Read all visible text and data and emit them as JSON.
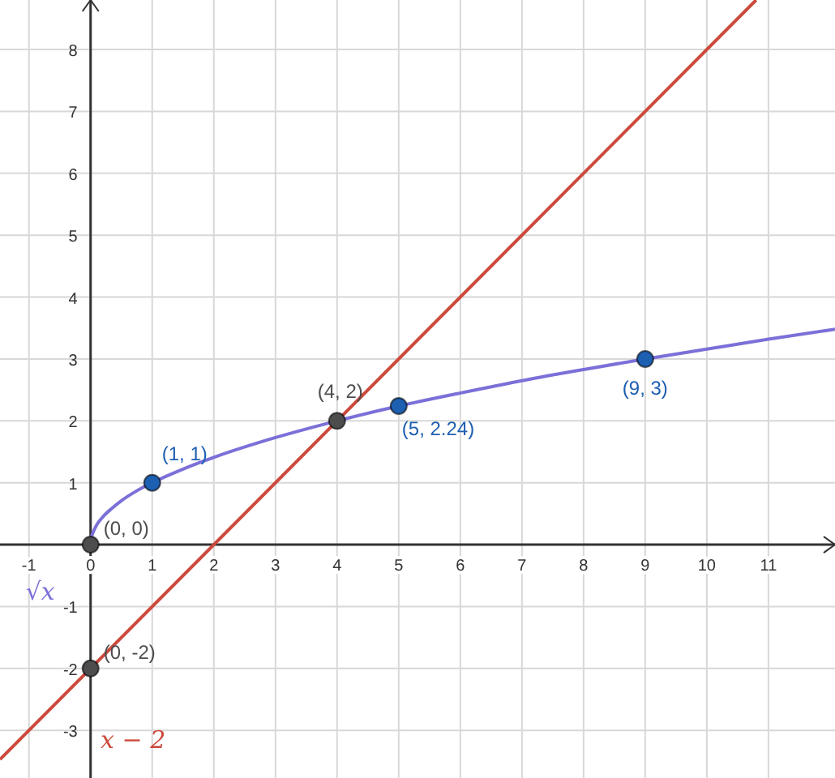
{
  "chart_data": {
    "type": "line",
    "xlim": [
      -1.47,
      12.08
    ],
    "ylim": [
      -3.77,
      8.8
    ],
    "xticks": [
      -1,
      0,
      1,
      2,
      3,
      4,
      5,
      6,
      7,
      8,
      9,
      10,
      11
    ],
    "yticks": [
      -3,
      -2,
      -1,
      1,
      2,
      3,
      4,
      5,
      6,
      7,
      8
    ],
    "grid": true,
    "marker": "none",
    "line_style": "solid",
    "series": [
      {
        "name": "√x",
        "color": "#7b70d8",
        "x": [
          0,
          0.01,
          0.05,
          0.1,
          0.2,
          0.35,
          0.5,
          0.75,
          1,
          1.5,
          2,
          3,
          4,
          5,
          6,
          7,
          8,
          9,
          10,
          11,
          12.08
        ],
        "values": [
          0,
          0.1,
          0.22,
          0.32,
          0.45,
          0.59,
          0.71,
          0.87,
          1,
          1.22,
          1.41,
          1.73,
          2,
          2.24,
          2.45,
          2.65,
          2.83,
          3,
          3.16,
          3.32,
          3.48
        ]
      },
      {
        "name": "x − 2",
        "color": "#cc4a3c",
        "x": [
          -1.47,
          10.8
        ],
        "values": [
          -3.47,
          8.8
        ]
      },
      {
        "type": "scatter",
        "marker": "circle",
        "x": [
          0,
          1,
          4,
          5,
          9,
          0
        ],
        "values": [
          0,
          1,
          2,
          2.24,
          3,
          -2
        ],
        "colors": [
          "#4d4d4d",
          "#1d5fb0",
          "#4d4d4d",
          "#1d5fb0",
          "#1d5fb0",
          "#4d4d4d"
        ]
      }
    ],
    "annotations": [
      {
        "text": "(0, 0)",
        "x": 0,
        "y": 0
      },
      {
        "text": "(1, 1)",
        "x": 1,
        "y": 1
      },
      {
        "text": "(4, 2)",
        "x": 4,
        "y": 2
      },
      {
        "text": "(5, 2.24)",
        "x": 5,
        "y": 2.24
      },
      {
        "text": "(9, 3)",
        "x": 9,
        "y": 3
      },
      {
        "text": "(0, -2)",
        "x": 0,
        "y": -2
      }
    ]
  }
}
